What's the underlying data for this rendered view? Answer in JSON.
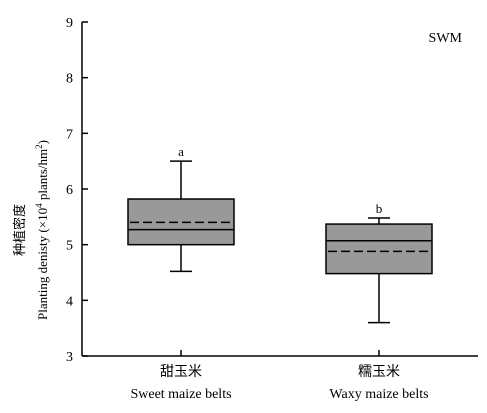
{
  "chart_data": {
    "type": "box",
    "panel_label": "SWM",
    "ylabel_cn": "种植密度",
    "ylabel_en_pre": "Planting denisty (×10",
    "ylabel_en_sup1": "4",
    "ylabel_en_mid": " plants/hm",
    "ylabel_en_sup2": "2",
    "ylabel_en_post": ")",
    "ylim": [
      3,
      9
    ],
    "yticks": [
      "3",
      "4",
      "5",
      "6",
      "7",
      "8",
      "9"
    ],
    "categories": [
      {
        "label_cn": "甜玉米",
        "label_en": "Sweet maize belts"
      },
      {
        "label_cn": "糯玉米",
        "label_en": "Waxy maize belts"
      }
    ],
    "boxes": [
      {
        "min": 4.52,
        "q1": 5.0,
        "median": 5.27,
        "q3": 5.82,
        "max": 6.5,
        "mean": 5.4,
        "letter": "a"
      },
      {
        "min": 3.6,
        "q1": 4.48,
        "median": 5.07,
        "q3": 5.37,
        "max": 5.48,
        "mean": 4.88,
        "letter": "b"
      }
    ],
    "box_color": "#999999",
    "grid": false
  }
}
